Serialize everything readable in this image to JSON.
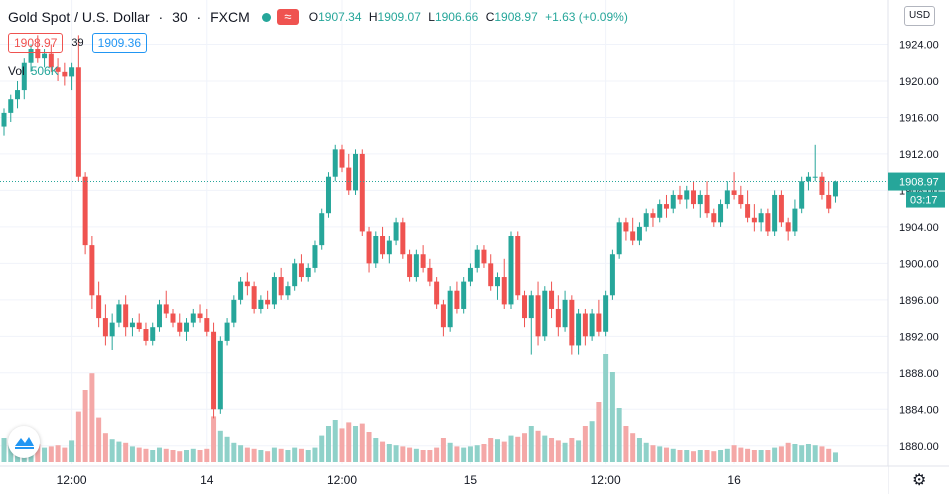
{
  "header": {
    "symbol_name": "Gold Spot / U.S. Dollar",
    "sep": "·",
    "interval": "30",
    "exchange": "FXCM",
    "open_label": "O",
    "open": "1907.34",
    "high_label": "H",
    "high": "1909.07",
    "low_label": "L",
    "low": "1906.66",
    "close_label": "C",
    "close": "1908.97",
    "change": "+1.63 (+0.09%)",
    "wave_glyph": "≈"
  },
  "quote": {
    "bid": "1908.97",
    "spread": "39",
    "ask": "1909.36"
  },
  "volume": {
    "label": "Vol",
    "value": "506K"
  },
  "currency": "USD",
  "price_tag": {
    "price": "1908.97",
    "countdown": "03:17"
  },
  "colors": {
    "up": "#26a69a",
    "down": "#ef5350",
    "vol_up": "#8fd1c9",
    "vol_down": "#f4a8a7",
    "grid": "#f0f3fa",
    "text": "#131722"
  },
  "icons": {
    "settings": "gear-icon",
    "logo": "tradingview-logo-icon"
  },
  "chart_data": {
    "type": "candlestick",
    "title": "Gold Spot / U.S. Dollar · 30 · FXCM",
    "ylim": [
      1878,
      1928
    ],
    "y_ticks": [
      1880,
      1884,
      1888,
      1892,
      1896,
      1900,
      1904,
      1908,
      1912,
      1916,
      1920,
      1924
    ],
    "y_tick_labels": [
      "1880.00",
      "1884.00",
      "1888.00",
      "1892.00",
      "1896.00",
      "1900.00",
      "1904.00",
      "1908.00",
      "1912.00",
      "1916.00",
      "1920.00",
      "1924.00"
    ],
    "x_ticks": [
      {
        "index": 10,
        "label": "12:00"
      },
      {
        "index": 30,
        "label": "14"
      },
      {
        "index": 50,
        "label": "12:00"
      },
      {
        "index": 69,
        "label": "15"
      },
      {
        "index": 89,
        "label": "12:00"
      },
      {
        "index": 108,
        "label": "16"
      }
    ],
    "last_price_line": 1908.97,
    "candles": [
      [
        1915.0,
        1917.0,
        1914.0,
        1916.5,
        0.2
      ],
      [
        1916.5,
        1918.5,
        1915.5,
        1918.0,
        0.16
      ],
      [
        1918.0,
        1920.0,
        1917.0,
        1919.0,
        0.14
      ],
      [
        1919.0,
        1922.5,
        1918.0,
        1922.0,
        0.18
      ],
      [
        1922.0,
        1924.0,
        1921.0,
        1923.5,
        0.17
      ],
      [
        1923.5,
        1925.0,
        1922.0,
        1922.5,
        0.15
      ],
      [
        1922.5,
        1923.5,
        1921.5,
        1923.0,
        0.12
      ],
      [
        1923.0,
        1924.0,
        1921.0,
        1921.5,
        0.13
      ],
      [
        1921.5,
        1922.5,
        1920.0,
        1921.0,
        0.14
      ],
      [
        1921.0,
        1922.0,
        1919.5,
        1920.5,
        0.12
      ],
      [
        1920.5,
        1922.0,
        1919.0,
        1921.5,
        0.18
      ],
      [
        1921.5,
        1925.0,
        1909.0,
        1909.5,
        0.42
      ],
      [
        1909.5,
        1910.0,
        1901.0,
        1902.0,
        0.6
      ],
      [
        1902.0,
        1903.0,
        1895.0,
        1896.5,
        0.74
      ],
      [
        1896.5,
        1898.0,
        1893.0,
        1894.0,
        0.37
      ],
      [
        1894.0,
        1895.5,
        1891.0,
        1892.0,
        0.24
      ],
      [
        1892.0,
        1894.5,
        1890.5,
        1893.5,
        0.19
      ],
      [
        1893.5,
        1896.0,
        1893.0,
        1895.5,
        0.17
      ],
      [
        1895.5,
        1896.5,
        1892.0,
        1893.0,
        0.16
      ],
      [
        1893.0,
        1894.0,
        1892.0,
        1893.5,
        0.13
      ],
      [
        1893.5,
        1894.5,
        1892.5,
        1892.8,
        0.12
      ],
      [
        1892.8,
        1893.5,
        1891.0,
        1891.5,
        0.11
      ],
      [
        1891.5,
        1893.5,
        1891.0,
        1893.0,
        0.1
      ],
      [
        1893.0,
        1896.0,
        1892.5,
        1895.5,
        0.12
      ],
      [
        1895.5,
        1897.0,
        1894.0,
        1894.5,
        0.11
      ],
      [
        1894.5,
        1895.0,
        1893.0,
        1893.5,
        0.1
      ],
      [
        1893.5,
        1894.5,
        1892.0,
        1892.5,
        0.09
      ],
      [
        1892.5,
        1894.0,
        1891.5,
        1893.5,
        0.1
      ],
      [
        1893.5,
        1895.0,
        1893.0,
        1894.5,
        0.11
      ],
      [
        1894.5,
        1895.5,
        1893.5,
        1894.0,
        0.1
      ],
      [
        1894.0,
        1895.0,
        1892.0,
        1892.5,
        0.11
      ],
      [
        1892.5,
        1893.5,
        1883.0,
        1884.0,
        0.38
      ],
      [
        1884.0,
        1892.0,
        1883.5,
        1891.5,
        0.26
      ],
      [
        1891.5,
        1894.0,
        1891.0,
        1893.5,
        0.21
      ],
      [
        1893.5,
        1896.5,
        1893.0,
        1896.0,
        0.16
      ],
      [
        1896.0,
        1898.5,
        1895.5,
        1898.0,
        0.14
      ],
      [
        1898.0,
        1899.0,
        1896.5,
        1897.5,
        0.12
      ],
      [
        1897.5,
        1898.0,
        1894.5,
        1895.0,
        0.11
      ],
      [
        1895.0,
        1896.5,
        1894.5,
        1896.0,
        0.1
      ],
      [
        1896.0,
        1897.0,
        1895.0,
        1895.5,
        0.09
      ],
      [
        1895.5,
        1899.0,
        1895.0,
        1898.5,
        0.12
      ],
      [
        1898.5,
        1899.5,
        1896.0,
        1896.5,
        0.11
      ],
      [
        1896.5,
        1898.0,
        1896.0,
        1897.5,
        0.1
      ],
      [
        1897.5,
        1900.5,
        1897.0,
        1900.0,
        0.12
      ],
      [
        1900.0,
        1901.0,
        1898.0,
        1898.5,
        0.11
      ],
      [
        1898.5,
        1900.0,
        1898.0,
        1899.5,
        0.1
      ],
      [
        1899.5,
        1902.5,
        1899.0,
        1902.0,
        0.12
      ],
      [
        1902.0,
        1906.0,
        1901.5,
        1905.5,
        0.22
      ],
      [
        1905.5,
        1910.0,
        1905.0,
        1909.5,
        0.3
      ],
      [
        1909.5,
        1913.0,
        1909.0,
        1912.5,
        0.35
      ],
      [
        1912.5,
        1913.0,
        1910.0,
        1910.5,
        0.28
      ],
      [
        1910.5,
        1912.0,
        1907.5,
        1908.0,
        0.33
      ],
      [
        1908.0,
        1912.5,
        1907.5,
        1912.0,
        0.3
      ],
      [
        1912.0,
        1912.5,
        1903.0,
        1903.5,
        0.32
      ],
      [
        1903.5,
        1904.0,
        1899.0,
        1900.0,
        0.25
      ],
      [
        1900.0,
        1903.5,
        1899.5,
        1903.0,
        0.2
      ],
      [
        1903.0,
        1904.0,
        1900.5,
        1901.0,
        0.17
      ],
      [
        1901.0,
        1903.0,
        1900.0,
        1902.5,
        0.15
      ],
      [
        1902.5,
        1905.0,
        1902.0,
        1904.5,
        0.14
      ],
      [
        1904.5,
        1905.0,
        1900.5,
        1901.0,
        0.13
      ],
      [
        1901.0,
        1901.5,
        1898.0,
        1898.5,
        0.12
      ],
      [
        1898.5,
        1901.5,
        1898.0,
        1901.0,
        0.11
      ],
      [
        1901.0,
        1902.0,
        1899.0,
        1899.5,
        0.1
      ],
      [
        1899.5,
        1900.5,
        1897.5,
        1898.0,
        0.1
      ],
      [
        1898.0,
        1898.5,
        1895.0,
        1895.5,
        0.12
      ],
      [
        1895.5,
        1896.0,
        1892.0,
        1893.0,
        0.2
      ],
      [
        1893.0,
        1897.5,
        1892.5,
        1897.0,
        0.16
      ],
      [
        1897.0,
        1898.0,
        1894.5,
        1895.0,
        0.13
      ],
      [
        1895.0,
        1898.5,
        1894.5,
        1898.0,
        0.12
      ],
      [
        1898.0,
        1900.0,
        1897.5,
        1899.5,
        0.13
      ],
      [
        1899.5,
        1902.0,
        1899.0,
        1901.5,
        0.14
      ],
      [
        1901.5,
        1902.0,
        1899.5,
        1900.0,
        0.15
      ],
      [
        1900.0,
        1901.0,
        1897.0,
        1897.5,
        0.2
      ],
      [
        1897.5,
        1899.0,
        1896.0,
        1898.5,
        0.19
      ],
      [
        1898.5,
        1900.5,
        1895.0,
        1895.5,
        0.17
      ],
      [
        1895.5,
        1903.5,
        1895.0,
        1903.0,
        0.22
      ],
      [
        1903.0,
        1903.5,
        1896.0,
        1896.5,
        0.21
      ],
      [
        1896.5,
        1897.0,
        1893.0,
        1894.0,
        0.24
      ],
      [
        1894.0,
        1897.0,
        1890.0,
        1896.5,
        0.3
      ],
      [
        1896.5,
        1898.0,
        1891.0,
        1892.0,
        0.26
      ],
      [
        1892.0,
        1897.5,
        1891.5,
        1897.0,
        0.22
      ],
      [
        1897.0,
        1898.0,
        1894.0,
        1895.0,
        0.2
      ],
      [
        1895.0,
        1896.5,
        1892.0,
        1893.0,
        0.18
      ],
      [
        1893.0,
        1897.0,
        1892.5,
        1896.0,
        0.16
      ],
      [
        1896.0,
        1896.5,
        1890.0,
        1891.0,
        0.2
      ],
      [
        1891.0,
        1895.0,
        1890.0,
        1894.5,
        0.18
      ],
      [
        1894.5,
        1895.0,
        1891.0,
        1892.0,
        0.3
      ],
      [
        1892.0,
        1895.0,
        1891.5,
        1894.5,
        0.34
      ],
      [
        1894.5,
        1896.0,
        1892.0,
        1892.5,
        0.5
      ],
      [
        1892.5,
        1897.0,
        1892.0,
        1896.5,
        0.9
      ],
      [
        1896.5,
        1901.5,
        1896.0,
        1901.0,
        0.75
      ],
      [
        1901.0,
        1905.0,
        1900.5,
        1904.5,
        0.45
      ],
      [
        1904.5,
        1905.0,
        1902.5,
        1903.5,
        0.3
      ],
      [
        1903.5,
        1905.0,
        1902.0,
        1902.5,
        0.24
      ],
      [
        1902.5,
        1904.5,
        1902.0,
        1904.0,
        0.2
      ],
      [
        1904.0,
        1906.0,
        1903.5,
        1905.5,
        0.16
      ],
      [
        1905.5,
        1906.0,
        1904.0,
        1905.0,
        0.14
      ],
      [
        1905.0,
        1907.0,
        1904.5,
        1906.5,
        0.13
      ],
      [
        1906.5,
        1907.5,
        1905.0,
        1906.0,
        0.12
      ],
      [
        1906.0,
        1908.0,
        1905.5,
        1907.5,
        0.11
      ],
      [
        1907.5,
        1908.5,
        1906.5,
        1907.0,
        0.1
      ],
      [
        1907.0,
        1908.5,
        1906.0,
        1908.0,
        0.1
      ],
      [
        1908.0,
        1909.0,
        1906.0,
        1906.5,
        0.09
      ],
      [
        1906.5,
        1908.0,
        1905.0,
        1907.5,
        0.1
      ],
      [
        1907.5,
        1909.0,
        1905.0,
        1905.5,
        0.1
      ],
      [
        1905.5,
        1906.0,
        1904.0,
        1904.5,
        0.09
      ],
      [
        1904.5,
        1907.0,
        1904.0,
        1906.5,
        0.1
      ],
      [
        1906.5,
        1909.0,
        1906.0,
        1908.0,
        0.11
      ],
      [
        1908.0,
        1910.0,
        1907.0,
        1907.5,
        0.14
      ],
      [
        1907.5,
        1908.5,
        1906.0,
        1906.5,
        0.12
      ],
      [
        1906.5,
        1908.0,
        1904.5,
        1905.0,
        0.11
      ],
      [
        1905.0,
        1906.5,
        1903.5,
        1904.5,
        0.1
      ],
      [
        1904.5,
        1906.0,
        1903.5,
        1905.5,
        0.1
      ],
      [
        1905.5,
        1906.0,
        1903.0,
        1903.5,
        0.1
      ],
      [
        1903.5,
        1908.0,
        1903.0,
        1907.5,
        0.12
      ],
      [
        1907.5,
        1908.0,
        1904.0,
        1904.5,
        0.13
      ],
      [
        1904.5,
        1905.0,
        1902.5,
        1903.5,
        0.16
      ],
      [
        1903.5,
        1907.0,
        1903.0,
        1906.0,
        0.15
      ],
      [
        1906.0,
        1909.5,
        1905.5,
        1909.0,
        0.14
      ],
      [
        1909.0,
        1910.0,
        1908.0,
        1909.5,
        0.15
      ],
      [
        1909.5,
        1913.0,
        1909.0,
        1909.5,
        0.14
      ],
      [
        1909.5,
        1910.0,
        1907.0,
        1907.5,
        0.13
      ],
      [
        1907.5,
        1909.0,
        1905.5,
        1906.0,
        0.11
      ],
      [
        1907.34,
        1909.07,
        1906.66,
        1908.97,
        0.08
      ]
    ]
  }
}
